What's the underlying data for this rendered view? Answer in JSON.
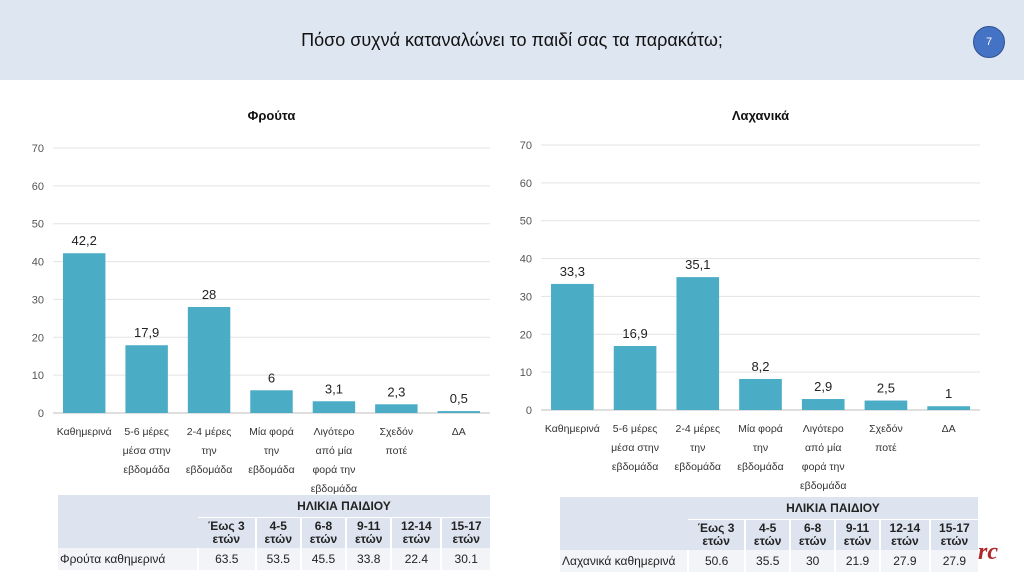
{
  "header": {
    "title": "Πόσο συχνά καταναλώνει το παιδί σας τα παρακάτω;",
    "page_number": "7"
  },
  "chart_data": [
    {
      "type": "bar",
      "title": "Φρούτα",
      "categories": [
        "Καθημερινά",
        "5-6 μέρες μέσα στην εβδομάδα",
        "2-4 μέρες την εβδομάδα",
        "Μία φορά την εβδομάδα",
        "Λιγότερο από μία φορά την εβδομάδα",
        "Σχεδόν ποτέ",
        "ΔΑ"
      ],
      "category_lines": [
        [
          "Καθημερινά"
        ],
        [
          "5-6 μέρες",
          "μέσα στην",
          "εβδομάδα"
        ],
        [
          "2-4 μέρες",
          "την",
          "εβδομάδα"
        ],
        [
          "Μία φορά",
          "την",
          "εβδομάδα"
        ],
        [
          "Λιγότερο",
          "από μία",
          "φορά την",
          "εβδομάδα"
        ],
        [
          "Σχεδόν",
          "ποτέ"
        ],
        [
          "ΔΑ"
        ]
      ],
      "values": [
        42.2,
        17.9,
        28,
        6,
        3.1,
        2.3,
        0.5
      ],
      "data_labels": [
        "42,2",
        "17,9",
        "28",
        "6",
        "3,1",
        "2,3",
        "0,5"
      ],
      "yticks": [
        0,
        10,
        20,
        30,
        40,
        50,
        60,
        70
      ],
      "ylim": [
        0,
        70
      ],
      "grid": true,
      "bar_color": "#4bacc6"
    },
    {
      "type": "bar",
      "title": "Λαχανικά",
      "categories": [
        "Καθημερινά",
        "5-6 μέρες μέσα στην εβδομάδα",
        "2-4 μέρες την εβδομάδα",
        "Μία φορά την εβδομάδα",
        "Λιγότερο από μία φορά την εβδομάδα",
        "Σχεδόν ποτέ",
        "ΔΑ"
      ],
      "category_lines": [
        [
          "Καθημερινά"
        ],
        [
          "5-6 μέρες",
          "μέσα στην",
          "εβδομάδα"
        ],
        [
          "2-4 μέρες",
          "την",
          "εβδομάδα"
        ],
        [
          "Μία φορά",
          "την",
          "εβδομάδα"
        ],
        [
          "Λιγότερο",
          "από μία",
          "φορά την",
          "εβδομάδα"
        ],
        [
          "Σχεδόν",
          "ποτέ"
        ],
        [
          "ΔΑ"
        ]
      ],
      "values": [
        33.3,
        16.9,
        35.1,
        8.2,
        2.9,
        2.5,
        1
      ],
      "data_labels": [
        "33,3",
        "16,9",
        "35,1",
        "8,2",
        "2,9",
        "2,5",
        "1"
      ],
      "yticks": [
        0,
        10,
        20,
        30,
        40,
        50,
        60,
        70
      ],
      "ylim": [
        0,
        70
      ],
      "grid": true,
      "bar_color": "#4bacc6"
    },
    {
      "type": "table",
      "group_header": "ΗΛΙΚΙΑ ΠΑΙΔΙΟΥ",
      "columns": [
        "Έως 3 ετών",
        "4-5 ετών",
        "6-8 ετών",
        "9-11 ετών",
        "12-14 ετών",
        "15-17 ετών"
      ],
      "row_label": "Φρούτα καθημερινά",
      "values": [
        "63.5",
        "53.5",
        "45.5",
        "33.8",
        "22.4",
        "30.1"
      ]
    },
    {
      "type": "table",
      "group_header": "ΗΛΙΚΙΑ ΠΑΙΔΙΟΥ",
      "columns": [
        "Έως 3 ετών",
        "4-5 ετών",
        "6-8 ετών",
        "9-11 ετών",
        "12-14 ετών",
        "15-17 ετών"
      ],
      "row_label": "Λαχανικά καθημερινά",
      "values": [
        "50.6",
        "35.5",
        "30",
        "21.9",
        "27.9",
        "27.9"
      ]
    }
  ],
  "logo_text": "rc"
}
